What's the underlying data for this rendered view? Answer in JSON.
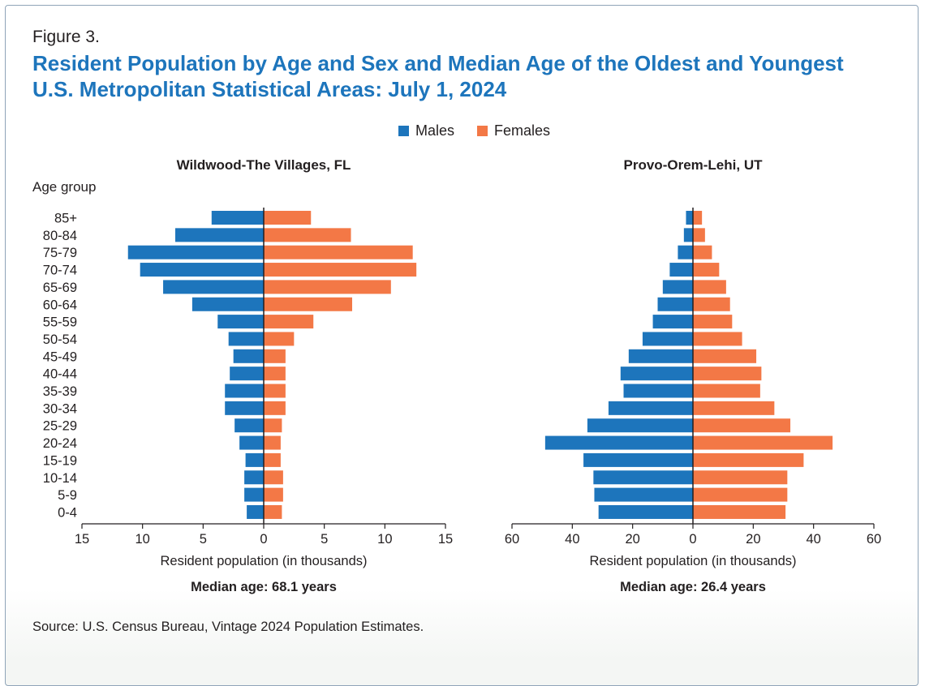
{
  "figure_label": "Figure 3.",
  "title": "Resident Population by Age and Sex and Median Age of the Oldest and Youngest U.S. Metropolitan Statistical Areas: July 1, 2024",
  "source": "Source: U.S. Census Bureau, Vintage 2024 Population Estimates.",
  "colors": {
    "males": "#1d75bc",
    "females": "#f37846",
    "title": "#1d75bc"
  },
  "legend": [
    {
      "label": "Males",
      "color": "#1d75bc"
    },
    {
      "label": "Females",
      "color": "#f37846"
    }
  ],
  "y_axis_title": "Age group",
  "chart_data": [
    {
      "type": "bar",
      "orientation": "horizontal-pyramid",
      "title": "Wildwood-The Villages, FL",
      "ylabel": "Age group",
      "xlabel": "Resident population (in thousands)",
      "xlim": [
        -15,
        15
      ],
      "xticks": [
        -15,
        -10,
        -5,
        0,
        5,
        10,
        15
      ],
      "xtick_labels": [
        "15",
        "10",
        "5",
        "0",
        "5",
        "10",
        "15"
      ],
      "categories": [
        "85+",
        "80-84",
        "75-79",
        "70-74",
        "65-69",
        "60-64",
        "55-59",
        "50-54",
        "45-49",
        "40-44",
        "35-39",
        "30-34",
        "25-29",
        "20-24",
        "15-19",
        "10-14",
        "5-9",
        "0-4"
      ],
      "series": [
        {
          "name": "Males",
          "values": [
            4.3,
            7.3,
            11.2,
            10.2,
            8.3,
            5.9,
            3.8,
            2.9,
            2.5,
            2.8,
            3.2,
            3.2,
            2.4,
            2.0,
            1.5,
            1.6,
            1.6,
            1.4
          ]
        },
        {
          "name": "Females",
          "values": [
            3.9,
            7.2,
            12.3,
            12.6,
            10.5,
            7.3,
            4.1,
            2.5,
            1.8,
            1.8,
            1.8,
            1.8,
            1.5,
            1.4,
            1.4,
            1.6,
            1.6,
            1.5
          ]
        }
      ],
      "annotation": "Median age: 68.1 years"
    },
    {
      "type": "bar",
      "orientation": "horizontal-pyramid",
      "title": "Provo-Orem-Lehi, UT",
      "xlabel": "Resident population (in thousands)",
      "xlim": [
        -60,
        60
      ],
      "xticks": [
        -60,
        -40,
        -20,
        0,
        20,
        40,
        60
      ],
      "xtick_labels": [
        "60",
        "40",
        "20",
        "0",
        "20",
        "40",
        "60"
      ],
      "categories": [
        "85+",
        "80-84",
        "75-79",
        "70-74",
        "65-69",
        "60-64",
        "55-59",
        "50-54",
        "45-49",
        "40-44",
        "35-39",
        "30-34",
        "25-29",
        "20-24",
        "15-19",
        "10-14",
        "5-9",
        "0-4"
      ],
      "series": [
        {
          "name": "Males",
          "values": [
            2.3,
            3.0,
            5.0,
            7.7,
            10.0,
            11.7,
            13.3,
            16.7,
            21.3,
            24.0,
            23.0,
            28.0,
            35.0,
            49.0,
            36.3,
            33.0,
            32.7,
            31.3
          ]
        },
        {
          "name": "Females",
          "values": [
            3.0,
            4.0,
            6.3,
            8.7,
            11.0,
            12.3,
            13.0,
            16.3,
            21.0,
            22.7,
            22.3,
            27.0,
            32.3,
            46.3,
            36.7,
            31.3,
            31.3,
            30.7
          ]
        }
      ],
      "annotation": "Median age: 26.4 years"
    }
  ]
}
